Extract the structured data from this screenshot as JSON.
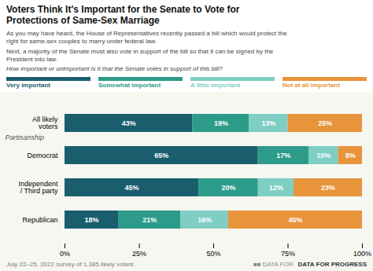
{
  "chart_data": {
    "type": "bar",
    "orientation": "horizontal",
    "stacked": true,
    "data_labels": true,
    "legend": "top",
    "grid": false,
    "title": "Voters Think It's Important for the Senate to Vote for\nProtections of Same-Sex Marriage",
    "subtitle": [
      "As you may have heard, the House of Representatives recently passed a bill which would protect the\nright for same-sex couples to marry under federal law.",
      "Next, a majority of the Senate must also vote in support of the bill so that it can be signed by the\nPresident into law.",
      "How important or unimportant is it that the Senate votes in support of this bill?"
    ],
    "annotations": [
      "Partisanship",
      "July 22–25, 2022 survey of 1,385 likely voters",
      "■■ DATA FOR",
      "DATA FOR PROGRESS"
    ],
    "categories": [
      "All likely\nvoters",
      "Democrat",
      "Independent\n/ Third party",
      "Republican"
    ],
    "series": [
      {
        "name": "Very important",
        "color": "#1a5e6e",
        "values": [
          43,
          65,
          45,
          18
        ],
        "value_labels": [
          "43%",
          "65%",
          "45%",
          "18%"
        ]
      },
      {
        "name": "Somewhat important",
        "color": "#2d9b8a",
        "values": [
          19,
          17,
          20,
          21
        ],
        "value_labels": [
          "19%",
          "17%",
          "20%",
          "21%"
        ]
      },
      {
        "name": "A little important",
        "color": "#7ecec4",
        "values": [
          13,
          10,
          12,
          16
        ],
        "value_labels": [
          "13%",
          "10%",
          "12%",
          "16%"
        ]
      },
      {
        "name": "Not at all important",
        "color": "#e8943a",
        "values": [
          25,
          8,
          23,
          45
        ],
        "value_labels": [
          "25%",
          "8%",
          "23%",
          "45%"
        ]
      }
    ],
    "xlim": [
      0,
      100
    ],
    "xticks": [
      {
        "value": 0,
        "label": "0%"
      },
      {
        "value": 25,
        "label": "25%"
      },
      {
        "value": 50,
        "label": "50%"
      },
      {
        "value": 75,
        "label": "75%"
      },
      {
        "value": 100,
        "label": "100%"
      }
    ]
  }
}
